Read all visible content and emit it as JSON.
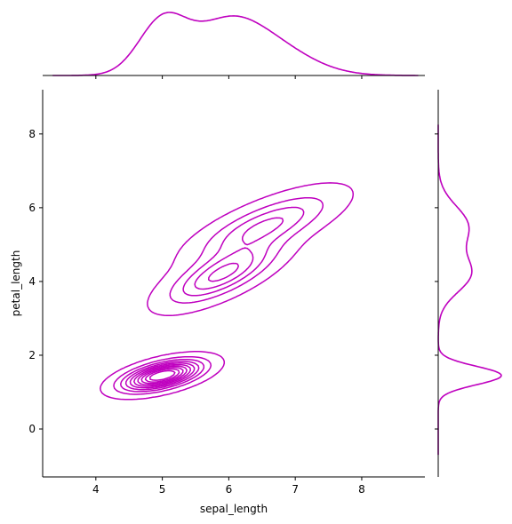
{
  "chart_data": {
    "type": "kde-joint",
    "xlabel": "sepal_length",
    "ylabel": "petal_length",
    "xlim": [
      3.2,
      8.95
    ],
    "ylim": [
      -1.3,
      9.2
    ],
    "xticks": [
      4,
      5,
      6,
      7,
      8
    ],
    "yticks": [
      0,
      2,
      4,
      6,
      8
    ],
    "color": "#bf00bf",
    "contour_levels": 10,
    "kde_components": [
      {
        "x": 5.0,
        "y": 1.45,
        "sx": 0.36,
        "sy": 0.25,
        "rho": 0.55,
        "weight": 0.33
      },
      {
        "x": 5.9,
        "y": 4.2,
        "sx": 0.5,
        "sy": 0.5,
        "rho": 0.72,
        "weight": 0.33
      },
      {
        "x": 6.55,
        "y": 5.5,
        "sx": 0.62,
        "sy": 0.55,
        "rho": 0.74,
        "weight": 0.34
      }
    ],
    "marginal_x_range": [
      3.35,
      8.85
    ],
    "marginal_y_range": [
      -0.7,
      8.25
    ]
  }
}
